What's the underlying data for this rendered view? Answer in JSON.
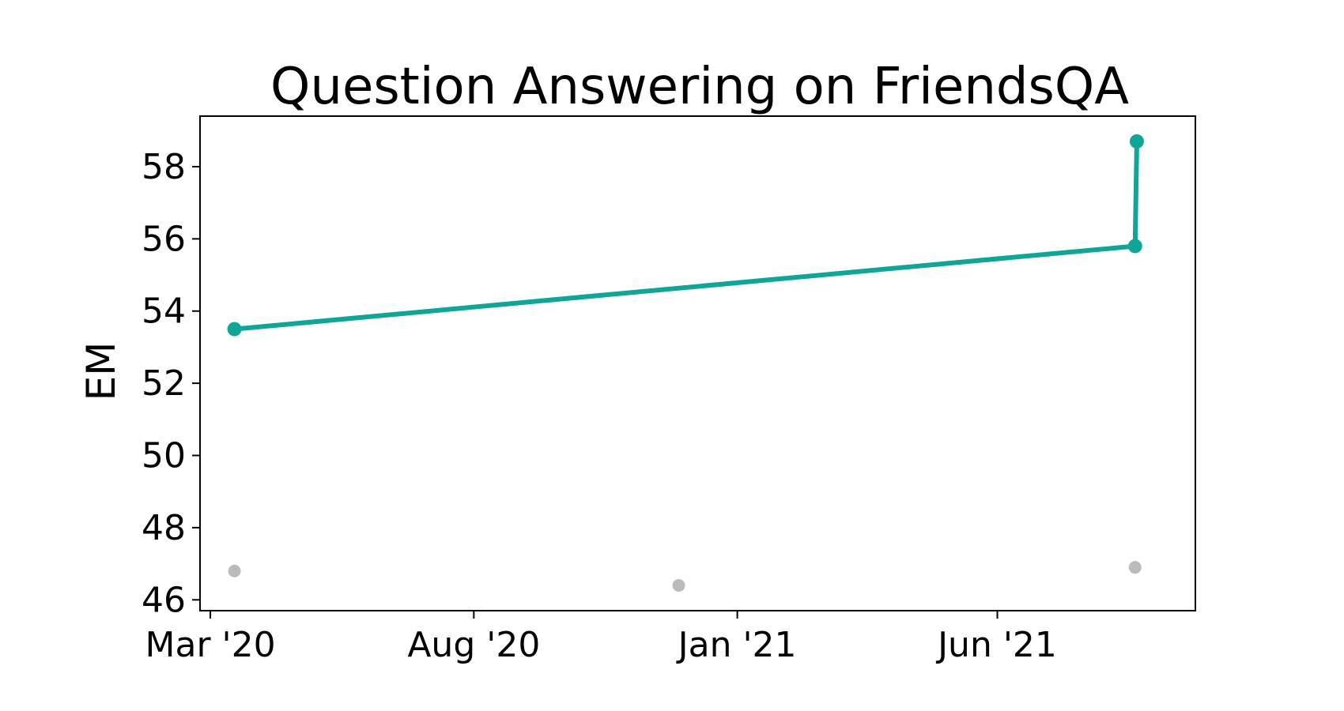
{
  "chart_data": {
    "type": "line",
    "title": "Question Answering on FriendsQA",
    "xlabel": "",
    "ylabel": "EM",
    "x_ticks": [
      "Mar '20",
      "Aug '20",
      "Jan '21",
      "Jun '21"
    ],
    "y_ticks": [
      "46",
      "48",
      "50",
      "52",
      "54",
      "56",
      "58"
    ],
    "xlim": [
      "2020-02-24",
      "2021-09-24"
    ],
    "ylim": [
      45.7,
      59.4
    ],
    "grid": false,
    "series": [
      {
        "color": "#10a697",
        "points": [
          {
            "x": "2020-03-15",
            "y": 53.5
          },
          {
            "x": "2021-08-20",
            "y": 55.8
          },
          {
            "x": "2021-08-21",
            "y": 58.7
          }
        ],
        "line": true
      },
      {
        "color": "#bbbbbb",
        "points": [
          {
            "x": "2020-03-15",
            "y": 46.8
          },
          {
            "x": "2020-11-28",
            "y": 46.4
          },
          {
            "x": "2021-08-20",
            "y": 46.9
          }
        ],
        "line": false
      }
    ]
  }
}
